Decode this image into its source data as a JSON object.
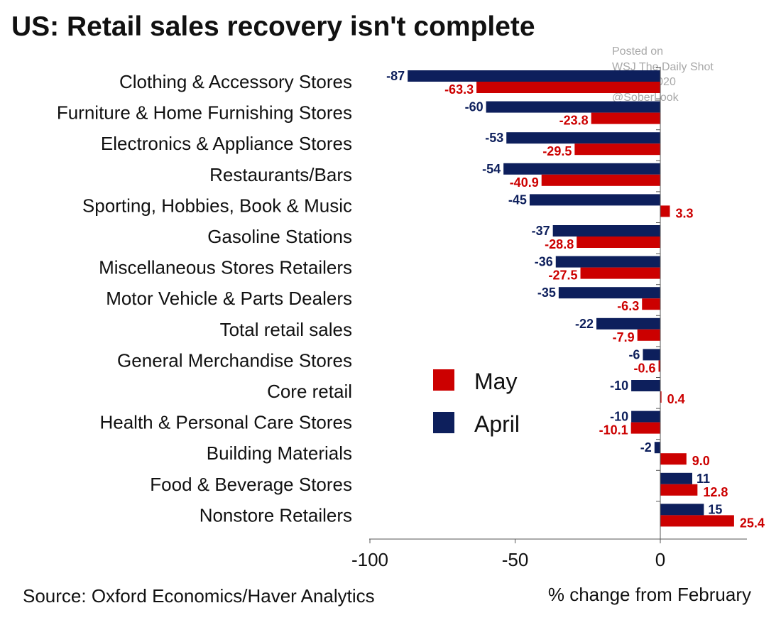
{
  "colors": {
    "may": "#cc0000",
    "april": "#0d1f5c",
    "axis": "#555555"
  },
  "title": "US: Retail sales recovery isn't complete",
  "watermark": {
    "line1": "Posted on",
    "line2": "WSJ The Daily Shot",
    "line3": "17-Jun-2020",
    "line4": "@SoberLook"
  },
  "source": "Source: Oxford Economics/Haver Analytics",
  "chart_data": {
    "type": "bar",
    "orientation": "horizontal",
    "title": "US: Retail sales recovery isn't complete",
    "xlabel": "% change from February",
    "ylabel": "",
    "xlim": [
      -100,
      30
    ],
    "xticks": [
      "-100",
      "-50",
      "0"
    ],
    "grid": false,
    "legend_placement": "center",
    "categories": [
      "Clothing & Accessory Stores",
      "Furniture & Home Furnishing Stores",
      "Electronics & Appliance Stores",
      "Restaurants/Bars",
      "Sporting, Hobbies, Book & Music",
      "Gasoline Stations",
      "Miscellaneous Stores Retailers",
      "Motor Vehicle & Parts Dealers",
      "Total retail sales",
      "General Merchandise Stores",
      "Core retail",
      "Health & Personal Care Stores",
      "Building Materials",
      "Food & Beverage Stores",
      "Nonstore Retailers"
    ],
    "series": [
      {
        "name": "April",
        "values": [
          -87,
          -60,
          -53,
          -54,
          -45,
          -37,
          -36,
          -35,
          -22,
          -6,
          -10,
          -10,
          -2,
          11,
          15
        ],
        "labels": [
          "-87",
          "-60",
          "-53",
          "-54",
          "-45",
          "-37",
          "-36",
          "-35",
          "-22",
          "-6",
          "-10",
          "-10",
          "-2",
          "11",
          "15"
        ]
      },
      {
        "name": "May",
        "values": [
          -63.3,
          -23.8,
          -29.5,
          -40.9,
          3.3,
          -28.8,
          -27.5,
          -6.3,
          -7.9,
          -0.6,
          0.4,
          -10.1,
          9.0,
          12.8,
          25.4
        ],
        "labels": [
          "-63.3",
          "-23.8",
          "-29.5",
          "-40.9",
          "3.3",
          "-28.8",
          "-27.5",
          "-6.3",
          "-7.9",
          "-0.6",
          "0.4",
          "-10.1",
          "9.0",
          "12.8",
          "25.4"
        ]
      }
    ],
    "legend": [
      {
        "name": "May",
        "color": "#cc0000"
      },
      {
        "name": "April",
        "color": "#0d1f5c"
      }
    ]
  }
}
